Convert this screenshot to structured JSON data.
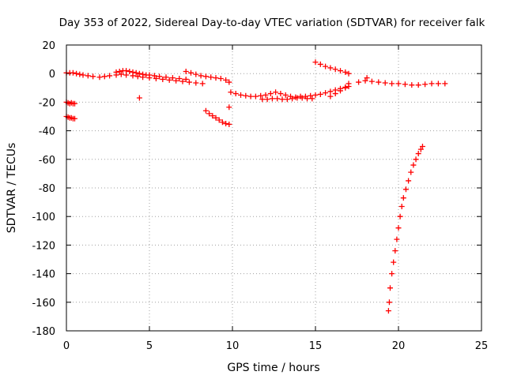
{
  "chart_data": {
    "type": "scatter",
    "title": "Day 353 of 2022, Sidereal Day-to-day VTEC variation (SDTVAR) for receiver falk",
    "xlabel": "GPS time / hours",
    "ylabel": "SDTVAR / TECUs",
    "xlim": [
      0,
      25
    ],
    "ylim": [
      -180,
      20
    ],
    "xticks": [
      "0",
      "5",
      "10",
      "15",
      "20",
      "25"
    ],
    "yticks": [
      "20",
      "0",
      "-20",
      "-40",
      "-60",
      "-80",
      "-100",
      "-120",
      "-140",
      "-160",
      "-180"
    ],
    "grid": true,
    "marker": "plus",
    "color": "#ff0000",
    "segments": [
      {
        "x": [
          0.0,
          0.2,
          0.4,
          0.6,
          0.8,
          1.0,
          1.3,
          1.6,
          2.0,
          2.3,
          2.6,
          3.0,
          3.3,
          3.6,
          4.0,
          4.3,
          4.6,
          5.0,
          5.4,
          5.8,
          6.2,
          6.6,
          7.0,
          7.4,
          7.8,
          8.2
        ],
        "y": [
          0.5,
          0.5,
          0.5,
          0.0,
          -0.5,
          -1.0,
          -1.5,
          -2.0,
          -2.5,
          -2.0,
          -1.5,
          -1.0,
          -0.5,
          -1.0,
          -1.5,
          -2.0,
          -2.5,
          -3.0,
          -3.5,
          -4.0,
          -4.5,
          -5.0,
          -5.5,
          -6.0,
          -6.5,
          -7.0
        ]
      },
      {
        "x": [
          3.0,
          3.2,
          3.4,
          3.6,
          3.8,
          4.0,
          4.2,
          4.4,
          4.6,
          4.8,
          5.0,
          5.3,
          5.6,
          6.0,
          6.4,
          6.8,
          7.2
        ],
        "y": [
          1.0,
          1.5,
          2.0,
          2.0,
          1.5,
          1.0,
          0.5,
          0.0,
          -0.5,
          -1.0,
          -1.0,
          -1.5,
          -2.0,
          -2.5,
          -3.0,
          -3.5,
          -4.0
        ]
      },
      {
        "x": [
          7.2,
          7.5,
          7.8,
          8.1,
          8.4,
          8.7,
          9.0,
          9.3,
          9.6,
          9.8
        ],
        "y": [
          1.5,
          0.5,
          -0.5,
          -1.5,
          -2.0,
          -2.5,
          -3.0,
          -3.5,
          -4.5,
          -6.0
        ]
      },
      {
        "x": [
          0.0,
          0.1,
          0.2,
          0.3,
          0.4,
          0.5
        ],
        "y": [
          -20.0,
          -20.5,
          -21.0,
          -20.5,
          -21.0,
          -21.0
        ]
      },
      {
        "x": [
          0.0,
          0.1,
          0.2,
          0.3,
          0.4,
          0.5
        ],
        "y": [
          -30.0,
          -30.5,
          -31.0,
          -31.0,
          -31.5,
          -31.5
        ]
      },
      {
        "x": [
          4.4
        ],
        "y": [
          -17.0
        ]
      },
      {
        "x": [
          8.4,
          8.6,
          8.8,
          9.0,
          9.2,
          9.4,
          9.6,
          9.8
        ],
        "y": [
          -26.0,
          -28.0,
          -29.5,
          -31.0,
          -32.5,
          -34.0,
          -35.0,
          -35.5
        ]
      },
      {
        "x": [
          9.8
        ],
        "y": [
          -23.5
        ]
      },
      {
        "x": [
          9.9,
          10.2,
          10.5,
          10.8,
          11.1,
          11.4,
          11.7,
          12.0,
          12.3,
          12.6,
          12.9,
          13.2,
          13.5,
          13.8,
          14.1,
          14.4,
          14.7,
          15.0,
          15.3,
          15.6,
          15.9,
          16.2,
          16.5,
          16.8,
          17.0
        ],
        "y": [
          -13.0,
          -14.0,
          -15.0,
          -15.5,
          -16.0,
          -16.0,
          -15.5,
          -15.0,
          -14.0,
          -13.0,
          -14.0,
          -15.0,
          -16.0,
          -16.5,
          -16.0,
          -16.0,
          -15.5,
          -15.0,
          -14.5,
          -13.5,
          -12.5,
          -11.5,
          -10.5,
          -9.5,
          -9.0
        ]
      },
      {
        "x": [
          11.8,
          12.1,
          12.4,
          12.7,
          13.0,
          13.3,
          13.6,
          13.9,
          14.2,
          14.5,
          14.8
        ],
        "y": [
          -18.0,
          -18.0,
          -17.5,
          -17.5,
          -18.0,
          -18.0,
          -17.5,
          -17.0,
          -17.0,
          -17.5,
          -17.5
        ]
      },
      {
        "x": [
          15.0,
          15.3,
          15.6,
          15.9,
          16.2,
          16.5,
          16.8,
          17.0
        ],
        "y": [
          8.0,
          6.5,
          5.0,
          4.0,
          3.0,
          2.0,
          1.0,
          0.0
        ]
      },
      {
        "x": [
          15.9,
          16.2,
          16.5,
          16.8,
          17.0
        ],
        "y": [
          -16.0,
          -14.0,
          -12.0,
          -10.0,
          -7.0
        ]
      },
      {
        "x": [
          17.6,
          18.0,
          18.4,
          18.8,
          19.2,
          19.6,
          20.0,
          20.4,
          20.8,
          21.2,
          21.6,
          22.0,
          22.4,
          22.8
        ],
        "y": [
          -6.0,
          -5.0,
          -5.5,
          -6.0,
          -6.5,
          -7.0,
          -7.0,
          -7.5,
          -8.0,
          -8.0,
          -7.5,
          -7.0,
          -7.0,
          -7.0
        ]
      },
      {
        "x": [
          18.1
        ],
        "y": [
          -3.0
        ]
      },
      {
        "x": [
          19.4,
          19.45,
          19.5,
          19.6,
          19.7,
          19.8,
          19.9,
          20.0,
          20.1,
          20.2,
          20.3,
          20.45,
          20.6,
          20.75,
          20.9,
          21.05,
          21.2,
          21.35,
          21.45
        ],
        "y": [
          -166.0,
          -160.0,
          -150.0,
          -140.0,
          -132.0,
          -124.0,
          -116.0,
          -108.0,
          -100.0,
          -93.0,
          -87.0,
          -81.0,
          -75.0,
          -69.0,
          -64.0,
          -60.0,
          -56.0,
          -53.0,
          -51.0
        ]
      }
    ]
  }
}
